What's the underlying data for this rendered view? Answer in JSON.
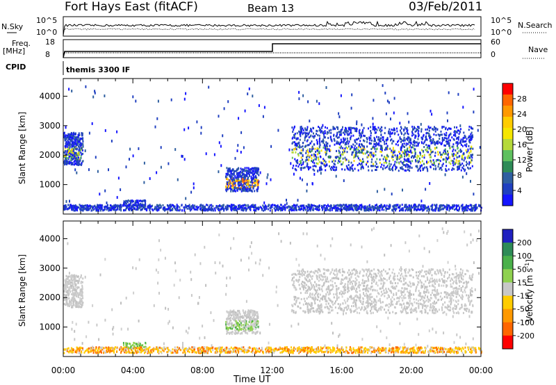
{
  "header": {
    "title": "Fort Hays East (fitACF)",
    "beam": "Beam 13",
    "date": "03/Feb/2011"
  },
  "top_panels": {
    "nsky_label": "N.Sky",
    "nsky_ticks": [
      "10^5",
      "10^0"
    ],
    "nsearch_label": "N.Search",
    "nsearch_ticks": [
      "10^5",
      "10^0"
    ],
    "freq_label": "Freq.",
    "freq_unit": "[MHz]",
    "freq_ticks": [
      "18",
      "8"
    ],
    "nave_label": "Nave",
    "nave_ticks": [
      "60",
      "0"
    ],
    "cpid_label": "CPID",
    "cpid_text": "themis 3300 IF"
  },
  "colorbars": {
    "power": {
      "label": "Power [dB]",
      "ticks": [
        "28",
        "24",
        "20",
        "16",
        "12",
        "8",
        "4"
      ],
      "colors": [
        "#ff0000",
        "#ff6600",
        "#ff9900",
        "#ffcc00",
        "#f5e600",
        "#b5d93a",
        "#5fc05f",
        "#2e8b57",
        "#2f5fa0",
        "#2040c0",
        "#1515ff"
      ]
    },
    "velocity": {
      "label": "Velocity [m s",
      "label_sup": "-1",
      "label_end": "]",
      "ticks": [
        "200",
        "100",
        "50",
        "15",
        "-15",
        "-50",
        "-100",
        "-200"
      ],
      "colors": [
        "#2020c0",
        "#2e8b57",
        "#4ab04a",
        "#8fd14f",
        "#c8c8c8",
        "#ffcc00",
        "#ff9900",
        "#ff6600",
        "#ff0000"
      ]
    }
  },
  "chart_data": [
    {
      "type": "heatmap",
      "name": "power",
      "ylabel": "Slant Range [km]",
      "y_ticks": [
        1000,
        2000,
        3000,
        4000
      ],
      "ylim": [
        0,
        4600
      ],
      "x_ticks": [
        "00:00",
        "04:00",
        "08:00",
        "12:00",
        "16:00",
        "20:00",
        "00:00"
      ],
      "xlim_hours": [
        0,
        24
      ],
      "regions": [
        {
          "t0": 0.0,
          "t1": 1.1,
          "r0": 1700,
          "r1": 2800,
          "dominant": "blue",
          "core": "yellow-green"
        },
        {
          "t0": 3.4,
          "t1": 4.7,
          "r0": 300,
          "r1": 500,
          "dominant": "blue"
        },
        {
          "t0": 9.3,
          "t1": 11.2,
          "r0": 800,
          "r1": 1600,
          "dominant": "blue",
          "core": "orange"
        },
        {
          "t0": 13.1,
          "t1": 23.5,
          "r0": 1500,
          "r1": 3000,
          "dominant": "blue",
          "core": "yellow-green"
        },
        {
          "t0": 0.0,
          "t1": 24.0,
          "r0": 150,
          "r1": 350,
          "dominant": "blue"
        }
      ]
    },
    {
      "type": "heatmap",
      "name": "velocity",
      "ylabel": "Slant Range [km]",
      "y_ticks": [
        1000,
        2000,
        3000,
        4000
      ],
      "ylim": [
        0,
        4600
      ],
      "x_ticks": [
        "00:00",
        "04:00",
        "08:00",
        "12:00",
        "16:00",
        "20:00",
        "00:00"
      ],
      "xlabel": "Time UT",
      "xlim_hours": [
        0,
        24
      ],
      "regions": [
        {
          "t0": 0.0,
          "t1": 1.1,
          "r0": 1700,
          "r1": 2800,
          "dominant": "grey"
        },
        {
          "t0": 3.4,
          "t1": 4.7,
          "r0": 300,
          "r1": 500,
          "dominant": "green"
        },
        {
          "t0": 9.3,
          "t1": 11.2,
          "r0": 800,
          "r1": 1600,
          "dominant": "grey",
          "core": "green"
        },
        {
          "t0": 13.1,
          "t1": 23.5,
          "r0": 1500,
          "r1": 3000,
          "dominant": "grey"
        },
        {
          "t0": 0.0,
          "t1": 24.0,
          "r0": 150,
          "r1": 350,
          "dominant": "orange"
        }
      ]
    }
  ]
}
